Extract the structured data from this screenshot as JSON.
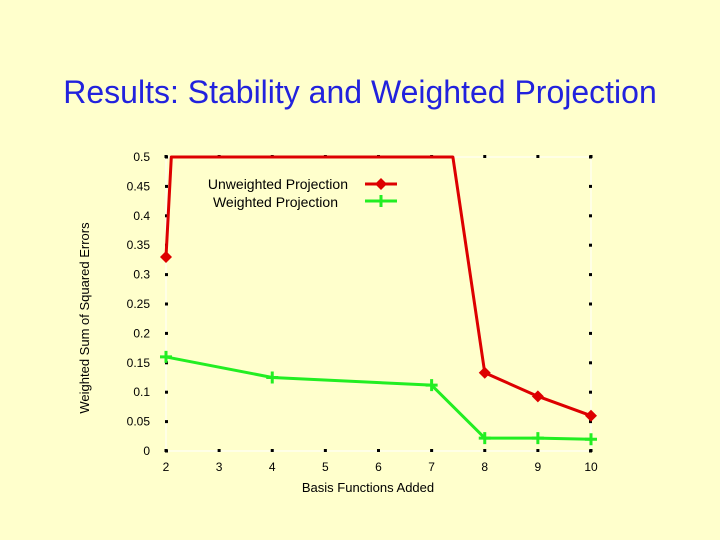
{
  "slide": {
    "title": "Results: Stability and Weighted Projection"
  },
  "chart_data": {
    "type": "line",
    "title": "",
    "xlabel": "Basis Functions Added",
    "ylabel": "Weighted Sum of Squared Errors",
    "xlim": [
      2,
      10
    ],
    "ylim": [
      0,
      0.5
    ],
    "xticks": [
      2,
      3,
      4,
      5,
      6,
      7,
      8,
      9,
      10
    ],
    "yticks": [
      "0",
      "0.05",
      "0.1",
      "0.15",
      "0.2",
      "0.25",
      "0.3",
      "0.35",
      "0.4",
      "0.45",
      "0.5"
    ],
    "legend_position": "top-right",
    "series": [
      {
        "name": "Unweighted Projection",
        "color": "#dd0000",
        "marker": "diamond",
        "x": [
          2,
          2.1,
          7.4,
          8,
          9,
          10
        ],
        "y": [
          0.33,
          0.5,
          0.5,
          0.133,
          0.093,
          0.06
        ]
      },
      {
        "name": "Weighted Projection",
        "color": "#22ee22",
        "marker": "plus",
        "x": [
          2,
          4,
          7,
          8,
          9,
          10
        ],
        "y": [
          0.16,
          0.125,
          0.112,
          0.022,
          0.022,
          0.02
        ]
      }
    ]
  }
}
